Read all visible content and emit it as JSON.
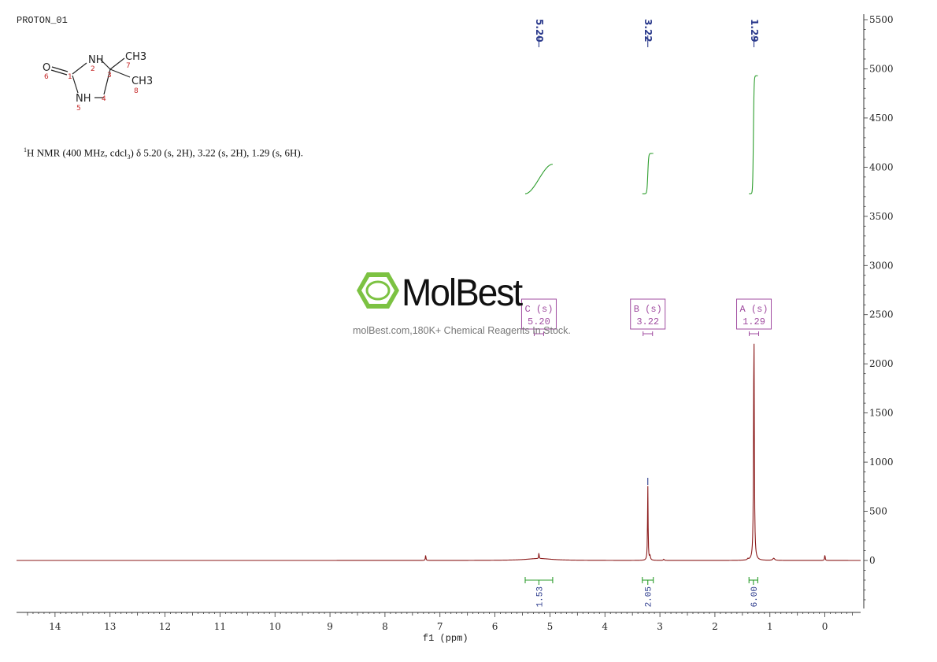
{
  "experiment_name": "PROTON_01",
  "nmr_summary": {
    "nucleus_sup": "1",
    "prefix": "H NMR (400 MHz, cdcl",
    "solvent_sub": "3",
    "suffix": ") δ 5.20 (s, 2H), 3.22 (s, 2H), 1.29 (s, 6H)."
  },
  "structure": {
    "atoms": [
      "O",
      "NH",
      "NH",
      "CH3",
      "CH3"
    ],
    "atom_numbers": [
      "1",
      "2",
      "3",
      "4",
      "5",
      "6",
      "7",
      "8"
    ]
  },
  "watermark": {
    "brand": "MolBest",
    "tagline": "molBest.com,180K+ Chemical Reagents In Stock."
  },
  "colors": {
    "spectrum": "#8b1a1a",
    "integral_curve": "#2e9e2e",
    "peak_label": "#2b3a8c",
    "multiplet_box": "#a04ca0",
    "axis": "#333333",
    "logo_green": "#7cc242"
  },
  "chart_data": {
    "type": "line",
    "xlabel": "f1 (ppm)",
    "ylabel": "",
    "xlim": [
      14.7,
      -0.65
    ],
    "ylim": [
      -500,
      5500
    ],
    "x_reversed": true,
    "x_ticks": [
      14,
      13,
      12,
      11,
      10,
      9,
      8,
      7,
      6,
      5,
      4,
      3,
      2,
      1,
      0
    ],
    "y_ticks": [
      0,
      500,
      1000,
      1500,
      2000,
      2500,
      3000,
      3500,
      4000,
      4500,
      5000,
      5500
    ],
    "y_axis_side": "right",
    "peaks": [
      {
        "ppm": 7.26,
        "height": 55,
        "width": 0.006
      },
      {
        "ppm": 5.2,
        "height": 20,
        "width": 0.28
      },
      {
        "ppm": 5.2,
        "height": 70,
        "width": 0.004
      },
      {
        "ppm": 3.22,
        "height": 760,
        "width": 0.006
      },
      {
        "ppm": 3.18,
        "height": 40,
        "width": 0.01
      },
      {
        "ppm": 2.93,
        "height": 12,
        "width": 0.01
      },
      {
        "ppm": 1.29,
        "height": 2350,
        "width": 0.008
      },
      {
        "ppm": 1.4,
        "height": 12,
        "width": 0.01
      },
      {
        "ppm": 0.93,
        "height": 22,
        "width": 0.02
      },
      {
        "ppm": 0.0,
        "height": 60,
        "width": 0.006
      }
    ],
    "peak_labels": [
      {
        "ppm": 5.2,
        "text": "5.20"
      },
      {
        "ppm": 3.22,
        "text": "3.22"
      },
      {
        "ppm": 1.29,
        "text": "1.29"
      }
    ],
    "multiplets": [
      {
        "letter": "C (s)",
        "shift": "5.20",
        "ppm": 5.2
      },
      {
        "letter": "B (s)",
        "shift": "3.22",
        "ppm": 3.22
      },
      {
        "letter": "A (s)",
        "shift": "1.29",
        "ppm": 1.29
      }
    ],
    "integrals": [
      {
        "from": 5.45,
        "to": 4.95,
        "value": "1.53",
        "y_start": 3730,
        "y_end": 4030,
        "shape": "broad"
      },
      {
        "from": 3.32,
        "to": 3.12,
        "value": "2.05",
        "y_start": 3730,
        "y_end": 4140,
        "shape": "sharp"
      },
      {
        "from": 1.38,
        "to": 1.22,
        "value": "6.00",
        "y_start": 3730,
        "y_end": 4930,
        "shape": "sharp"
      }
    ]
  }
}
